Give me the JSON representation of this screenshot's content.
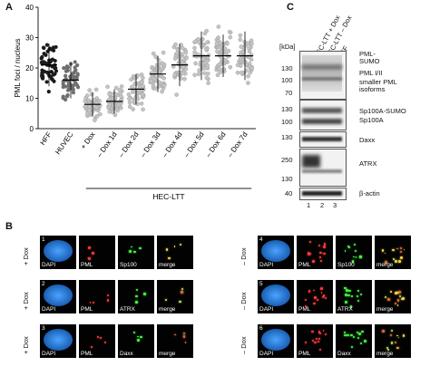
{
  "panel_labels": {
    "a": "A",
    "b": "B",
    "c": "C"
  },
  "chart_data": {
    "type": "scatter",
    "ylabel": "PML foci / nucleus",
    "ylim": [
      0,
      40
    ],
    "yticks": [
      "0",
      "10",
      "20",
      "30",
      "40"
    ],
    "categories": [
      "HFF",
      "HUVEC",
      "+ Dox",
      "– Dox 1d",
      "– Dox 2d",
      "– Dox 3d",
      "– Dox 4d",
      "– Dox 5d",
      "– Dox 6d",
      "– Dox 7d"
    ],
    "group_label": "HEC-LTT",
    "mean": [
      21,
      16,
      8,
      9,
      13,
      18,
      21,
      24,
      24,
      24
    ],
    "spread": [
      7,
      6,
      4,
      4,
      5,
      6,
      7,
      8,
      7,
      8
    ],
    "series_colors": {
      "HFF": "#1a1a1a",
      "HUVEC": "#6f6f6f",
      "HEC-LTT": "#c4c4c4"
    }
  },
  "blot": {
    "columns": [
      "HEC-LTT + Dox",
      "HEC-LTT – Dox",
      "HFF"
    ],
    "kda_label": "[kDa]",
    "lane_numbers": [
      "1",
      "2",
      "3"
    ],
    "boxes": [
      {
        "markers": [
          "130",
          "100",
          "70"
        ],
        "labels": [
          "PML-SUMO",
          "PML I/II",
          "smaller PML isoforms"
        ]
      },
      {
        "markers": [
          "130",
          "100"
        ],
        "labels": [
          "Sp100A-SUMO",
          "Sp100A"
        ]
      },
      {
        "markers": [
          "130"
        ],
        "labels": [
          "Daxx"
        ]
      },
      {
        "markers": [
          "250",
          "130"
        ],
        "labels": [
          "ATRX"
        ]
      },
      {
        "markers": [
          "40"
        ],
        "labels": [
          "β-actin"
        ]
      }
    ]
  },
  "micro": {
    "left": {
      "rows": [
        {
          "num": "1",
          "cond": "+ Dox",
          "caps": [
            "DAPI",
            "PML",
            "Sp100",
            "merge"
          ]
        },
        {
          "num": "2",
          "cond": "+ Dox",
          "caps": [
            "DAPI",
            "PML",
            "ATRX",
            "merge"
          ]
        },
        {
          "num": "3",
          "cond": "+ Dox",
          "caps": [
            "DAPI",
            "PML",
            "Daxx",
            "merge"
          ]
        }
      ]
    },
    "right": {
      "rows": [
        {
          "num": "4",
          "cond": "– Dox",
          "caps": [
            "DAPI",
            "PML",
            "Sp100",
            "merge"
          ]
        },
        {
          "num": "5",
          "cond": "– Dox",
          "caps": [
            "DAPI",
            "PML",
            "ATRX",
            "merge"
          ]
        },
        {
          "num": "6",
          "cond": "– Dox",
          "caps": [
            "DAPI",
            "PML",
            "Daxx",
            "merge"
          ]
        }
      ]
    }
  }
}
